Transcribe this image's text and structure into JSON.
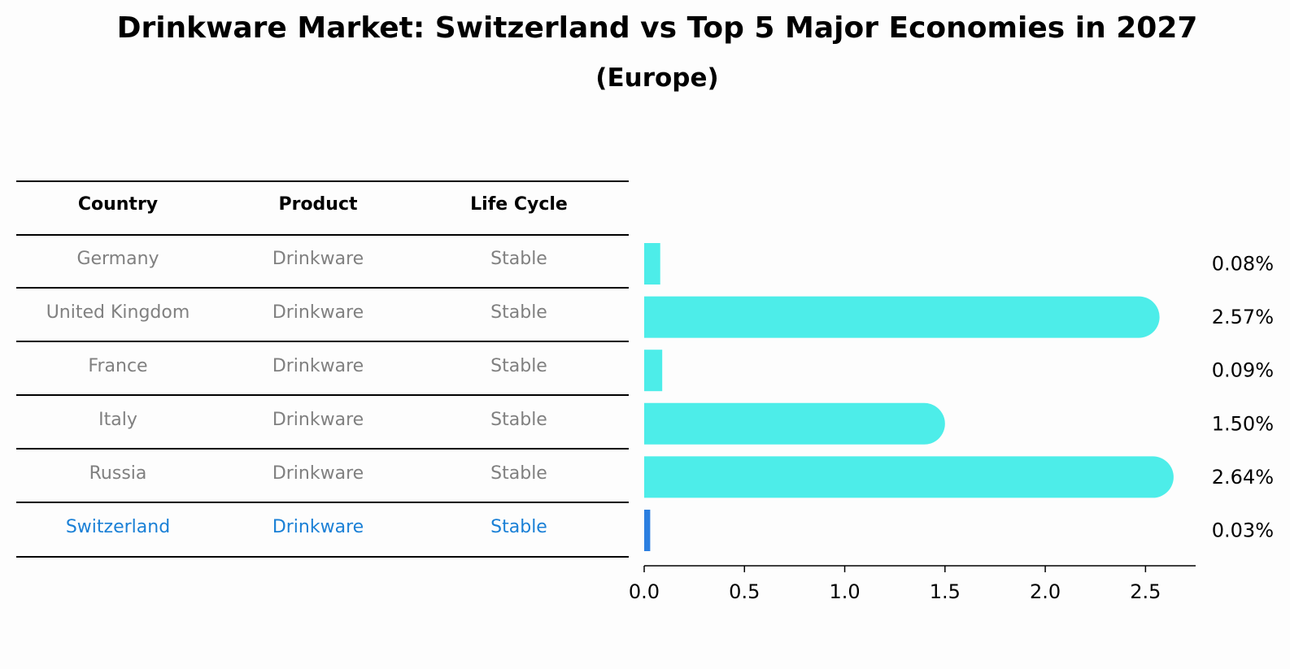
{
  "title": "Drinkware Market: Switzerland vs Top 5 Major Economies in 2027",
  "subtitle": "(Europe)",
  "table": {
    "headers": [
      "Country",
      "Product",
      "Life Cycle"
    ],
    "rows": [
      {
        "country": "Germany",
        "product": "Drinkware",
        "life_cycle": "Stable"
      },
      {
        "country": "United Kingdom",
        "product": "Drinkware",
        "life_cycle": "Stable"
      },
      {
        "country": "France",
        "product": "Drinkware",
        "life_cycle": "Stable"
      },
      {
        "country": "Italy",
        "product": "Drinkware",
        "life_cycle": "Stable"
      },
      {
        "country": "Russia",
        "product": "Drinkware",
        "life_cycle": "Stable"
      },
      {
        "country": "Switzerland",
        "product": "Drinkware",
        "life_cycle": "Stable"
      }
    ]
  },
  "colors": {
    "bar": "#4dede9",
    "highlight_bar": "#2b7fe0",
    "muted_text": "#808080",
    "highlight_text": "#1a80d6"
  },
  "chart_data": {
    "type": "bar",
    "orientation": "horizontal",
    "categories": [
      "Germany",
      "United Kingdom",
      "France",
      "Italy",
      "Russia",
      "Switzerland"
    ],
    "values": [
      0.08,
      2.57,
      0.09,
      1.5,
      2.64,
      0.03
    ],
    "value_labels": [
      "0.08%",
      "2.57%",
      "0.09%",
      "1.50%",
      "2.64%",
      "0.03%"
    ],
    "highlight": "Switzerland",
    "xlim": [
      0,
      2.75
    ],
    "xticks": [
      0.0,
      0.5,
      1.0,
      1.5,
      2.0,
      2.5
    ],
    "xtick_labels": [
      "0.0",
      "0.5",
      "1.0",
      "1.5",
      "2.0",
      "2.5"
    ],
    "xlabel": "",
    "ylabel": "",
    "grid": false
  }
}
